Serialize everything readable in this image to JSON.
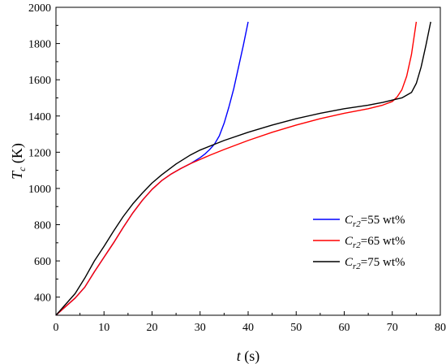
{
  "chart_data": {
    "type": "line",
    "xlabel": {
      "var": "t",
      "unit": "(s)"
    },
    "ylabel": {
      "var": "T",
      "sub": "c",
      "unit": "(K)"
    },
    "xlim": [
      0,
      80
    ],
    "ylim": [
      300,
      2000
    ],
    "xticks": [
      "0",
      "10",
      "20",
      "30",
      "40",
      "50",
      "60",
      "70",
      "80"
    ],
    "yticks": [
      "400",
      "600",
      "800",
      "1000",
      "1200",
      "1400",
      "1600",
      "1800",
      "2000"
    ],
    "grid": false,
    "legend_position": "lower-right",
    "series": [
      {
        "name": "C_r2=55 wt%",
        "legend": {
          "var": "C",
          "sub": "r2",
          "text": "=55 wt%"
        },
        "color": "#0000ff",
        "x": [
          0,
          2,
          4,
          6,
          8,
          10,
          12,
          14,
          16,
          18,
          20,
          22,
          24,
          26,
          28,
          30,
          31,
          32,
          33,
          34,
          35,
          36,
          37,
          38,
          39,
          40
        ],
        "y": [
          300,
          348,
          395,
          455,
          540,
          620,
          700,
          785,
          865,
          935,
          995,
          1043,
          1080,
          1110,
          1137,
          1170,
          1190,
          1215,
          1245,
          1290,
          1360,
          1450,
          1550,
          1670,
          1790,
          1920
        ]
      },
      {
        "name": "C_r2=65 wt%",
        "legend": {
          "var": "C",
          "sub": "r2",
          "text": "=65 wt%"
        },
        "color": "#ff0000",
        "x": [
          0,
          2,
          4,
          6,
          8,
          10,
          12,
          14,
          16,
          18,
          20,
          22,
          24,
          26,
          28,
          30,
          32,
          35,
          40,
          45,
          50,
          55,
          60,
          65,
          68,
          70,
          71,
          72,
          73,
          74,
          75
        ],
        "y": [
          300,
          348,
          395,
          455,
          540,
          620,
          700,
          785,
          865,
          935,
          995,
          1043,
          1080,
          1110,
          1137,
          1160,
          1183,
          1215,
          1265,
          1310,
          1350,
          1385,
          1415,
          1440,
          1460,
          1480,
          1505,
          1545,
          1620,
          1740,
          1920
        ]
      },
      {
        "name": "C_r2=75 wt%",
        "legend": {
          "var": "C",
          "sub": "r2",
          "text": "=75 wt%"
        },
        "color": "#000000",
        "x": [
          0,
          2,
          4,
          6,
          8,
          10,
          12,
          14,
          16,
          18,
          20,
          22,
          25,
          28,
          30,
          35,
          40,
          45,
          50,
          55,
          60,
          65,
          68,
          70,
          72,
          74,
          75,
          76,
          77,
          78
        ],
        "y": [
          300,
          360,
          420,
          505,
          600,
          680,
          765,
          845,
          915,
          975,
          1030,
          1075,
          1135,
          1185,
          1212,
          1265,
          1310,
          1350,
          1385,
          1415,
          1440,
          1460,
          1475,
          1488,
          1500,
          1530,
          1580,
          1670,
          1790,
          1920
        ]
      }
    ]
  }
}
